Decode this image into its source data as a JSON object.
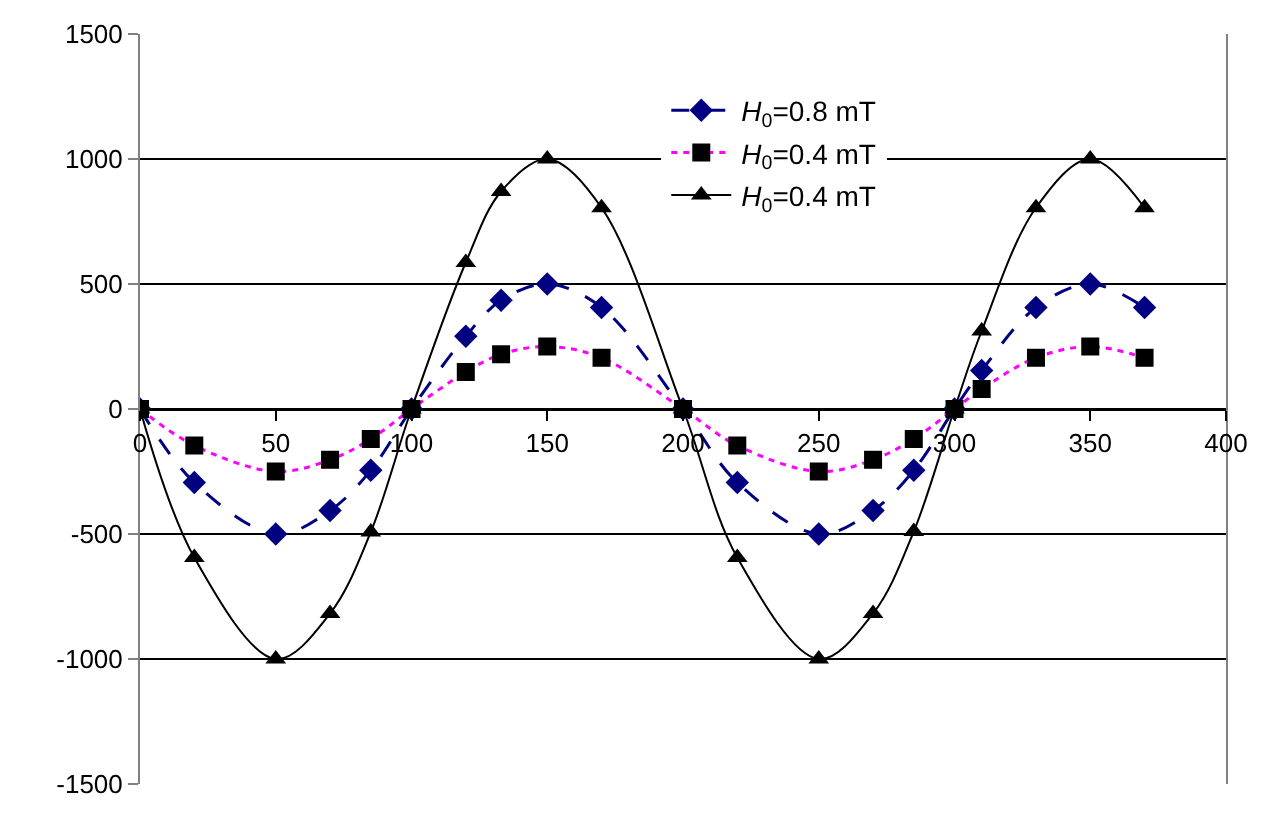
{
  "chart_data": {
    "type": "line",
    "x": [
      0,
      20,
      50,
      70,
      85,
      100,
      120,
      133,
      150,
      170,
      200,
      220,
      250,
      270,
      285,
      300,
      310,
      330,
      350,
      370
    ],
    "series": [
      {
        "name": "H$_{0}$=0.8 mT",
        "color": "#000080",
        "marker": "diamond",
        "line_style": "dashed",
        "values": [
          0,
          -294,
          -500,
          -406,
          -245,
          0,
          291,
          435,
          500,
          406,
          0,
          -294,
          -500,
          -406,
          -245,
          0,
          154,
          406,
          500,
          406
        ]
      },
      {
        "name": "H$_{0}$=0.4 mT",
        "color": "#ff00ff",
        "colors": [
          "#000000",
          "#000000",
          "#000000",
          "#000000",
          "#000000",
          "#000000",
          "#000000",
          "#000000",
          "#000000",
          "#000000",
          "#000000",
          "#000000",
          "#000000",
          "#000000",
          "#000000",
          "#000000",
          "#000000",
          "#000000",
          "#000000",
          "#000000"
        ],
        "marker": "square",
        "line_style": "dotted",
        "values": [
          0,
          -146,
          -250,
          -203,
          -120,
          0,
          148,
          219,
          250,
          205,
          0,
          -146,
          -250,
          -203,
          -120,
          0,
          80,
          205,
          250,
          205
        ]
      },
      {
        "name": "H$_{0}$=0.4 mT",
        "color": "#000000",
        "marker": "triangle",
        "line_style": "solid",
        "values": [
          0,
          -594,
          -1000,
          -818,
          -492,
          0,
          586,
          870,
          1000,
          805,
          0,
          -594,
          -1000,
          -818,
          -490,
          0,
          312,
          805,
          1000,
          805
        ]
      }
    ],
    "xlim": [
      0,
      400
    ],
    "xticks": [
      0,
      50,
      100,
      150,
      200,
      250,
      300,
      350,
      400
    ],
    "ylim": [
      -1500,
      1500
    ],
    "yticks": [
      -1500,
      -1000,
      -500,
      0,
      500,
      1000,
      1500
    ],
    "grid": "y",
    "legend": "top right"
  }
}
